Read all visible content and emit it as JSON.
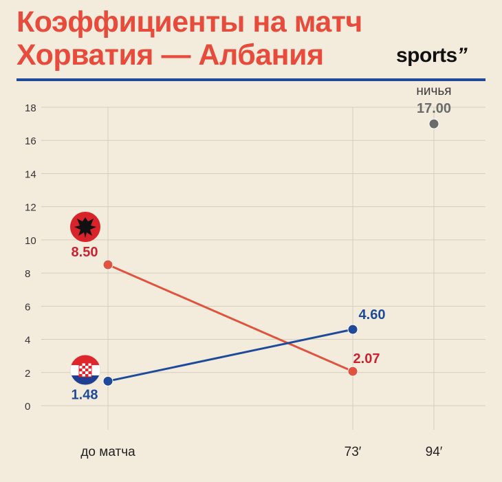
{
  "title_lines": [
    "Коэффициенты на матч",
    "Хорватия — Албания"
  ],
  "logo": "sports\"",
  "colors": {
    "background": "#f3ecdd",
    "title": "#e64b3c",
    "albania": "#e0533f",
    "albania_label": "#cc2230",
    "croatia": "#1f4a99",
    "draw": "#6b6b6b",
    "grid": "#d4cdbd"
  },
  "chart_data": {
    "type": "line",
    "title": "Коэффициенты на матч Хорватия — Албания",
    "categories": [
      "до матча",
      "73′",
      "94′"
    ],
    "ylim": [
      0,
      18
    ],
    "yticks": [
      0,
      2,
      4,
      6,
      8,
      10,
      12,
      14,
      16,
      18
    ],
    "grid": true,
    "series": [
      {
        "values": [
          8.5,
          2.07,
          null
        ],
        "labels": [
          "8.50",
          "2.07",
          ""
        ],
        "icon": "albania-flag-icon"
      },
      {
        "values": [
          1.48,
          4.6,
          null
        ],
        "labels": [
          "1.48",
          "4.60",
          ""
        ],
        "icon": "croatia-flag-icon"
      },
      {
        "name": "ничья",
        "values": [
          null,
          null,
          17.0
        ],
        "labels": [
          "",
          "",
          "17.00"
        ]
      }
    ]
  }
}
